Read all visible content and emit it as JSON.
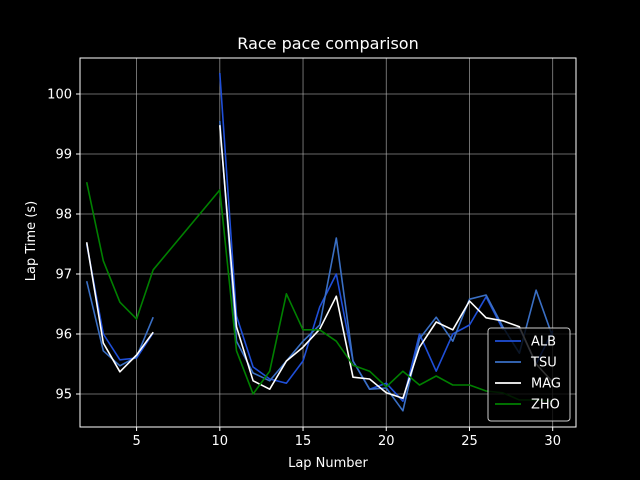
{
  "chart_data": {
    "type": "line",
    "title": "Race pace comparison",
    "xlabel": "Lap Number",
    "ylabel": "Lap Time (s)",
    "xlim": [
      1.6,
      31.4
    ],
    "ylim": [
      94.45,
      100.6
    ],
    "xticks": [
      5,
      10,
      15,
      20,
      25,
      30
    ],
    "yticks": [
      95,
      96,
      97,
      98,
      99,
      100
    ],
    "grid": true,
    "legend_position": "lower right",
    "series": [
      {
        "name": "ALB",
        "color": "#1f4fd8",
        "segments": [
          [
            [
              2,
              97.5
            ],
            [
              3,
              96.0
            ],
            [
              4,
              95.57
            ],
            [
              5,
              95.6
            ],
            [
              6,
              96.02
            ]
          ],
          [
            [
              10,
              100.35
            ],
            [
              11,
              96.3
            ],
            [
              12,
              95.45
            ],
            [
              13,
              95.25
            ],
            [
              14,
              95.18
            ],
            [
              15,
              95.55
            ],
            [
              16,
              96.45
            ],
            [
              17,
              97.0
            ],
            [
              18,
              95.55
            ],
            [
              19,
              95.08
            ],
            [
              20,
              95.18
            ],
            [
              21,
              94.88
            ],
            [
              22,
              96.0
            ],
            [
              23,
              95.38
            ],
            [
              24,
              96.0
            ],
            [
              25,
              96.15
            ],
            [
              26,
              96.62
            ],
            [
              27,
              96.08
            ],
            [
              28,
              96.1
            ],
            [
              29,
              95.5
            ],
            [
              30,
              96.05
            ]
          ]
        ]
      },
      {
        "name": "TSU",
        "color": "#3a6fc4",
        "segments": [
          [
            [
              2,
              96.88
            ],
            [
              3,
              95.72
            ],
            [
              4,
              95.47
            ],
            [
              5,
              95.62
            ],
            [
              6,
              96.28
            ]
          ],
          [
            [
              10,
              99.55
            ],
            [
              11,
              95.88
            ],
            [
              12,
              95.35
            ],
            [
              13,
              95.22
            ],
            [
              14,
              95.55
            ],
            [
              15,
              95.88
            ],
            [
              16,
              96.15
            ],
            [
              17,
              97.6
            ],
            [
              18,
              95.55
            ],
            [
              19,
              95.08
            ],
            [
              20,
              95.1
            ],
            [
              21,
              94.72
            ],
            [
              22,
              95.92
            ],
            [
              23,
              96.28
            ],
            [
              24,
              95.88
            ],
            [
              25,
              96.58
            ],
            [
              26,
              96.65
            ],
            [
              27,
              96.12
            ],
            [
              28,
              95.68
            ],
            [
              29,
              96.73
            ],
            [
              30,
              95.95
            ]
          ]
        ]
      },
      {
        "name": "MAG",
        "color": "#ffffff",
        "segments": [
          [
            [
              2,
              97.53
            ],
            [
              3,
              95.85
            ],
            [
              4,
              95.37
            ],
            [
              5,
              95.65
            ],
            [
              6,
              96.03
            ]
          ],
          [
            [
              10,
              99.48
            ],
            [
              11,
              96.12
            ],
            [
              12,
              95.22
            ],
            [
              13,
              95.08
            ],
            [
              14,
              95.55
            ],
            [
              15,
              95.78
            ],
            [
              16,
              96.08
            ],
            [
              17,
              96.63
            ],
            [
              18,
              95.28
            ],
            [
              19,
              95.25
            ],
            [
              20,
              95.02
            ],
            [
              21,
              94.93
            ],
            [
              22,
              95.78
            ],
            [
              23,
              96.2
            ],
            [
              24,
              96.07
            ],
            [
              25,
              96.55
            ],
            [
              26,
              96.27
            ],
            [
              27,
              96.22
            ],
            [
              28,
              96.12
            ],
            [
              29,
              95.5
            ],
            [
              30,
              95.2
            ]
          ]
        ]
      },
      {
        "name": "ZHO",
        "color": "#008000",
        "segments": [
          [
            [
              2,
              98.53
            ],
            [
              3,
              97.22
            ],
            [
              4,
              96.53
            ],
            [
              5,
              96.25
            ],
            [
              6,
              97.07
            ],
            [
              10,
              98.4
            ],
            [
              11,
              95.72
            ],
            [
              12,
              95.0
            ],
            [
              13,
              95.38
            ],
            [
              14,
              96.67
            ],
            [
              15,
              96.07
            ],
            [
              16,
              96.07
            ],
            [
              17,
              95.88
            ],
            [
              18,
              95.48
            ],
            [
              19,
              95.38
            ],
            [
              20,
              95.12
            ],
            [
              21,
              95.38
            ],
            [
              22,
              95.15
            ],
            [
              23,
              95.3
            ],
            [
              24,
              95.15
            ],
            [
              25,
              95.15
            ],
            [
              26,
              95.05
            ],
            [
              27,
              95.02
            ],
            [
              28,
              94.9
            ],
            [
              29,
              94.9
            ],
            [
              30,
              94.88
            ]
          ]
        ]
      }
    ]
  }
}
